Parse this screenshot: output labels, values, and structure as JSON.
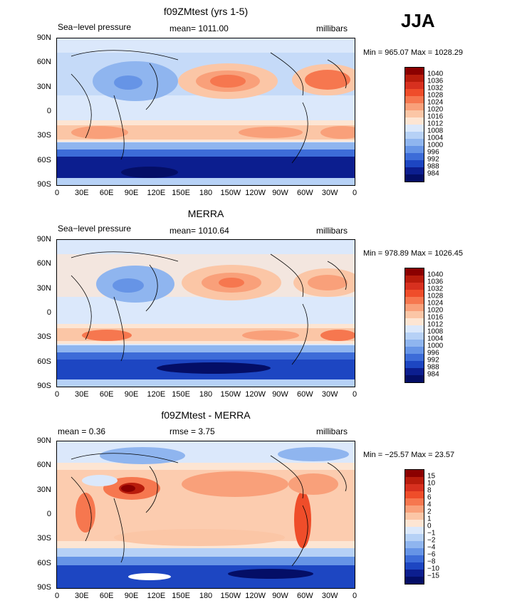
{
  "season": "JJA",
  "yticks": [
    "90N",
    "60N",
    "30N",
    "0",
    "30S",
    "60S",
    "90S"
  ],
  "xticks": [
    "0",
    "30E",
    "60E",
    "90E",
    "120E",
    "150E",
    "180",
    "150W",
    "120W",
    "90W",
    "60W",
    "30W",
    "0"
  ],
  "panels": [
    {
      "title": "f09ZMtest (yrs 1-5)",
      "left_label": "Sea−level pressure",
      "center_label": "mean=  1011.00",
      "right_label": "millibars",
      "minmax": "Min = 965.07 Max = 1028.29",
      "levels": [
        "1040",
        "1036",
        "1032",
        "1028",
        "1024",
        "1020",
        "1016",
        "1012",
        "1008",
        "1004",
        "1000",
        "996",
        "992",
        "988",
        "984"
      ]
    },
    {
      "title": "MERRA",
      "left_label": "Sea−level pressure",
      "center_label": "mean=  1010.64",
      "right_label": "millibars",
      "minmax": "Min = 978.89 Max = 1026.45",
      "levels": [
        "1040",
        "1036",
        "1032",
        "1028",
        "1024",
        "1020",
        "1016",
        "1012",
        "1008",
        "1004",
        "1000",
        "996",
        "992",
        "988",
        "984"
      ]
    },
    {
      "title": "f09ZMtest - MERRA",
      "left_label": "mean =     0.36",
      "center_label": "rmse =    3.75",
      "right_label": "millibars",
      "minmax": "Min = −25.57 Max =   23.57",
      "levels": [
        "15",
        "10",
        "8",
        "6",
        "4",
        "2",
        "1",
        "0",
        "−1",
        "−2",
        "−4",
        "−6",
        "−8",
        "−10",
        "−15"
      ]
    }
  ],
  "colors": {
    "scale": [
      "#8b0000",
      "#b81c0c",
      "#d7301f",
      "#ef4d2a",
      "#f6774f",
      "#f9a07a",
      "#fbc6a6",
      "#fde5d3",
      "#dbe8fb",
      "#b6d1f6",
      "#8fb5ef",
      "#6694e6",
      "#3d6cd8",
      "#1d46c2",
      "#0c1e8f",
      "#040e66"
    ]
  }
}
